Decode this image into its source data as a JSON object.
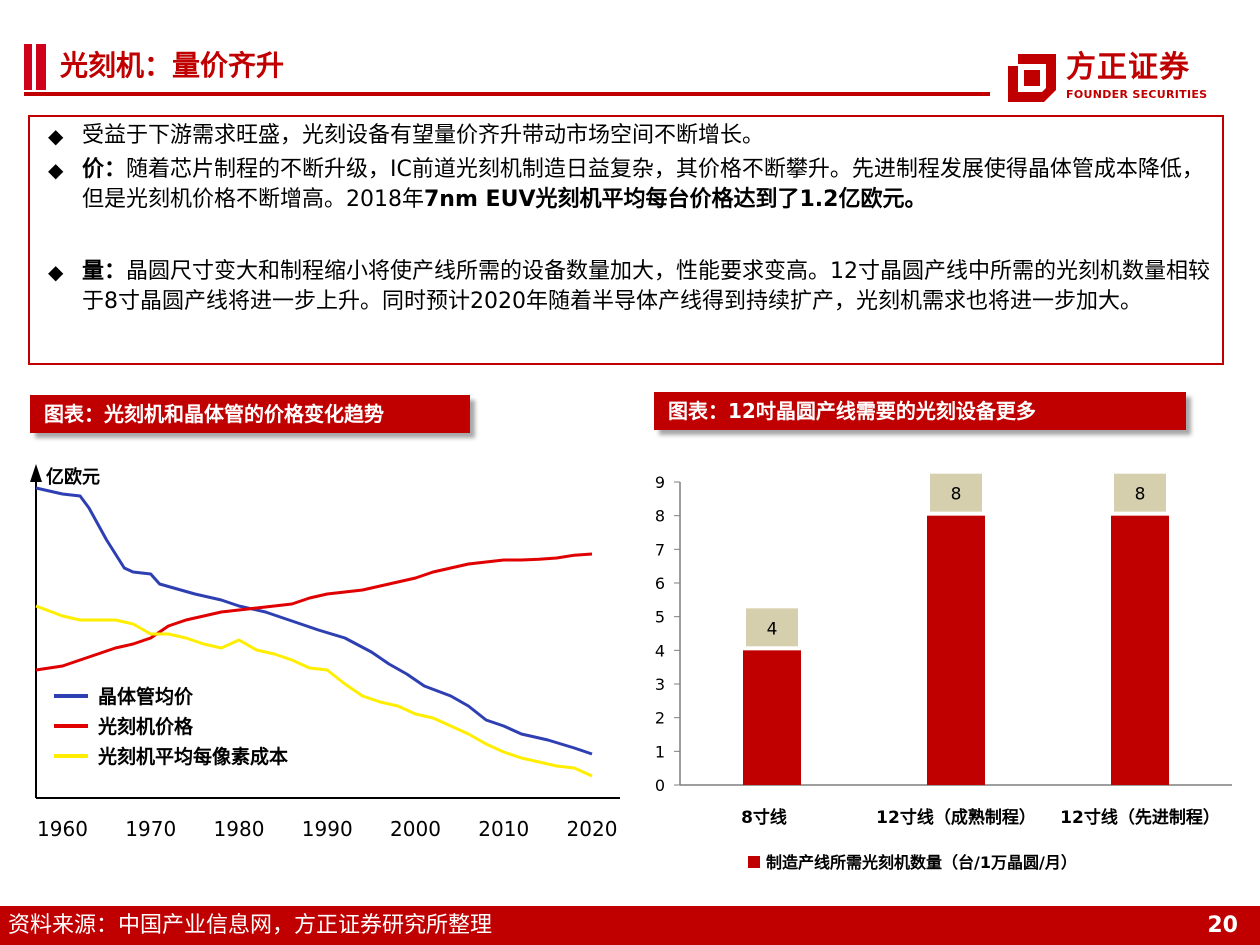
{
  "page": {
    "title": "光刻机：量价齐升",
    "page_number": "20"
  },
  "logo": {
    "name": "方正证券",
    "subtitle": "FOUNDER SECURITIES"
  },
  "summary": {
    "bullet_1": "受益于下游需求旺盛，光刻设备有望量价齐升带动市场空间不断增长。",
    "bullet_2_label": "价：",
    "bullet_2_text": "随着芯片制程的不断升级，IC前道光刻机制造日益复杂，其价格不断攀升。先进制程发展使得晶体管成本降低，但是光刻机价格不断增高。2018年",
    "bullet_2_bold": "7nm EUV光刻机平均每台价格达到了1.2亿欧元。",
    "bullet_3_label": "量：",
    "bullet_3_text": "晶圆尺寸变大和制程缩小将使产线所需的设备数量加大，性能要求变高。12寸晶圆产线中所需的光刻机数量相较于8寸晶圆产线将进一步上升。同时预计2020年随着半导体产线得到持续扩产，光刻机需求也将进一步加大。"
  },
  "charts": {
    "left_header": "图表：光刻机和晶体管的价格变化趋势",
    "right_header": "图表：12吋晶圆产线需要的光刻设备更多"
  },
  "footer": {
    "source": "资料来源：中国产业信息网，方正证券研究所整理"
  },
  "chart_data": [
    {
      "type": "line",
      "ylabel": "亿欧元",
      "x_ticks": [
        "1960",
        "1970",
        "1980",
        "1990",
        "2000",
        "2010",
        "2020"
      ],
      "legend_placement": "bottom-left",
      "series": [
        {
          "name": "晶体管均价",
          "color": "#2e3fb2",
          "points": [
            [
              1957,
              9.5
            ],
            [
              1960,
              9.35
            ],
            [
              1962,
              9.3
            ],
            [
              1963,
              9.0
            ],
            [
              1965,
              8.2
            ],
            [
              1967,
              7.5
            ],
            [
              1968,
              7.4
            ],
            [
              1970,
              7.35
            ],
            [
              1971,
              7.1
            ],
            [
              1975,
              6.85
            ],
            [
              1978,
              6.7
            ],
            [
              1980,
              6.55
            ],
            [
              1983,
              6.4
            ],
            [
              1985,
              6.25
            ],
            [
              1987,
              6.1
            ],
            [
              1989,
              5.95
            ],
            [
              1992,
              5.75
            ],
            [
              1995,
              5.4
            ],
            [
              1997,
              5.1
            ],
            [
              1999,
              4.85
            ],
            [
              2001,
              4.55
            ],
            [
              2004,
              4.3
            ],
            [
              2006,
              4.05
            ],
            [
              2008,
              3.7
            ],
            [
              2010,
              3.55
            ],
            [
              2012,
              3.35
            ],
            [
              2015,
              3.2
            ],
            [
              2018,
              3.0
            ],
            [
              2020,
              2.85
            ]
          ]
        },
        {
          "name": "光刻机价格",
          "color": "#e00000",
          "points": [
            [
              1957,
              4.95
            ],
            [
              1960,
              5.05
            ],
            [
              1962,
              5.2
            ],
            [
              1964,
              5.35
            ],
            [
              1966,
              5.5
            ],
            [
              1968,
              5.6
            ],
            [
              1970,
              5.75
            ],
            [
              1972,
              6.05
            ],
            [
              1974,
              6.2
            ],
            [
              1976,
              6.3
            ],
            [
              1978,
              6.4
            ],
            [
              1980,
              6.45
            ],
            [
              1982,
              6.5
            ],
            [
              1984,
              6.55
            ],
            [
              1986,
              6.6
            ],
            [
              1988,
              6.75
            ],
            [
              1990,
              6.85
            ],
            [
              1992,
              6.9
            ],
            [
              1994,
              6.95
            ],
            [
              1996,
              7.05
            ],
            [
              1998,
              7.15
            ],
            [
              2000,
              7.25
            ],
            [
              2002,
              7.4
            ],
            [
              2004,
              7.5
            ],
            [
              2006,
              7.6
            ],
            [
              2008,
              7.65
            ],
            [
              2010,
              7.7
            ],
            [
              2012,
              7.7
            ],
            [
              2014,
              7.72
            ],
            [
              2016,
              7.75
            ],
            [
              2018,
              7.82
            ],
            [
              2020,
              7.85
            ]
          ]
        },
        {
          "name": "光刻机平均每像素成本",
          "color": "#ffee00",
          "points": [
            [
              1957,
              6.55
            ],
            [
              1960,
              6.3
            ],
            [
              1962,
              6.2
            ],
            [
              1964,
              6.2
            ],
            [
              1966,
              6.2
            ],
            [
              1968,
              6.1
            ],
            [
              1970,
              5.85
            ],
            [
              1972,
              5.85
            ],
            [
              1974,
              5.75
            ],
            [
              1976,
              5.6
            ],
            [
              1978,
              5.5
            ],
            [
              1980,
              5.7
            ],
            [
              1982,
              5.45
            ],
            [
              1984,
              5.35
            ],
            [
              1986,
              5.2
            ],
            [
              1988,
              5.0
            ],
            [
              1990,
              4.95
            ],
            [
              1992,
              4.6
            ],
            [
              1994,
              4.3
            ],
            [
              1996,
              4.15
            ],
            [
              1998,
              4.05
            ],
            [
              2000,
              3.85
            ],
            [
              2002,
              3.75
            ],
            [
              2004,
              3.55
            ],
            [
              2006,
              3.35
            ],
            [
              2008,
              3.1
            ],
            [
              2010,
              2.9
            ],
            [
              2012,
              2.75
            ],
            [
              2014,
              2.65
            ],
            [
              2016,
              2.55
            ],
            [
              2018,
              2.5
            ],
            [
              2020,
              2.3
            ]
          ]
        }
      ]
    },
    {
      "type": "bar",
      "categories": [
        "8寸线",
        "12寸线（成熟制程）",
        "12寸线（先进制程）"
      ],
      "values": [
        4,
        8,
        8
      ],
      "ylim": [
        0,
        9
      ],
      "y_ticks": [
        0,
        1,
        2,
        3,
        4,
        5,
        6,
        7,
        8,
        9
      ],
      "legend": "制造产线所需光刻机数量（台/1万晶圆/月）",
      "bar_color": "#c00000",
      "label_bg": "#d6cfae"
    }
  ]
}
